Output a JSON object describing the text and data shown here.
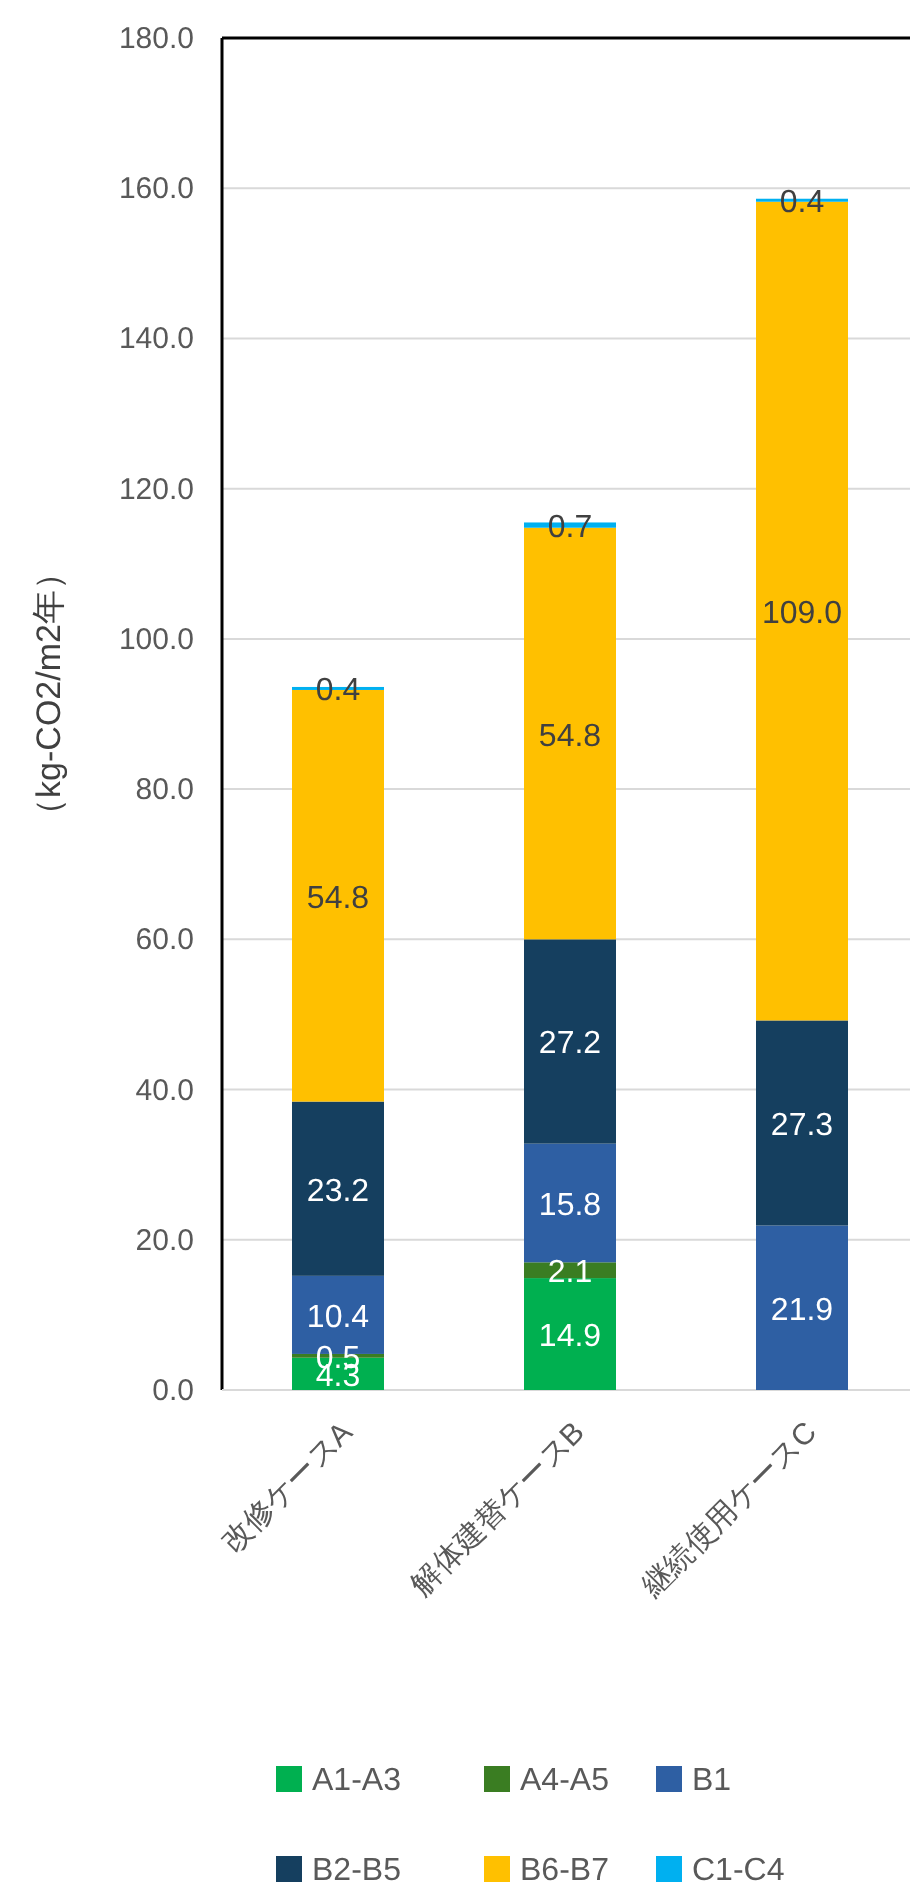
{
  "chart_data": {
    "type": "bar",
    "stacked": true,
    "ylabel": "（kg-CO2/m2年）",
    "categories": [
      "改修ケースA",
      "解体建替ケースB",
      "継続使用ケースC"
    ],
    "series": [
      {
        "name": "A1-A3",
        "color": "#00b050",
        "values": [
          4.3,
          14.9,
          null
        ],
        "value_labels": [
          "4.3",
          "14.9",
          null
        ]
      },
      {
        "name": "A4-A5",
        "color": "#3a7d22",
        "values": [
          0.5,
          2.1,
          null
        ],
        "value_labels": [
          "0.5",
          "2.1",
          null
        ]
      },
      {
        "name": "B1",
        "color": "#2e5fa3",
        "values": [
          10.4,
          15.8,
          21.9
        ],
        "value_labels": [
          "10.4",
          "15.8",
          "21.9"
        ]
      },
      {
        "name": "B2-B5",
        "color": "#153f5f",
        "values": [
          23.2,
          27.2,
          27.3
        ],
        "value_labels": [
          "23.2",
          "27.2",
          "27.3"
        ]
      },
      {
        "name": "B6-B7",
        "color": "#ffc000",
        "values": [
          54.8,
          54.8,
          109.0
        ],
        "value_labels": [
          "54.8",
          "54.8",
          "109.0"
        ]
      },
      {
        "name": "C1-C4",
        "color": "#00b0f0",
        "values": [
          0.4,
          0.7,
          0.4
        ],
        "value_labels": [
          "0.4",
          "0.7",
          "0.4"
        ]
      }
    ],
    "ylim": [
      0,
      180
    ],
    "yticks": [
      {
        "value": 0,
        "label": "0.0"
      },
      {
        "value": 20,
        "label": "20.0"
      },
      {
        "value": 40,
        "label": "40.0"
      },
      {
        "value": 60,
        "label": "60.0"
      },
      {
        "value": 80,
        "label": "80.0"
      },
      {
        "value": 100,
        "label": "100.0"
      },
      {
        "value": 120,
        "label": "120.0"
      },
      {
        "value": 140,
        "label": "140.0"
      },
      {
        "value": 160,
        "label": "160.0"
      },
      {
        "value": 180,
        "label": "180.0"
      }
    ],
    "grid": "y",
    "legend": "bottom"
  }
}
